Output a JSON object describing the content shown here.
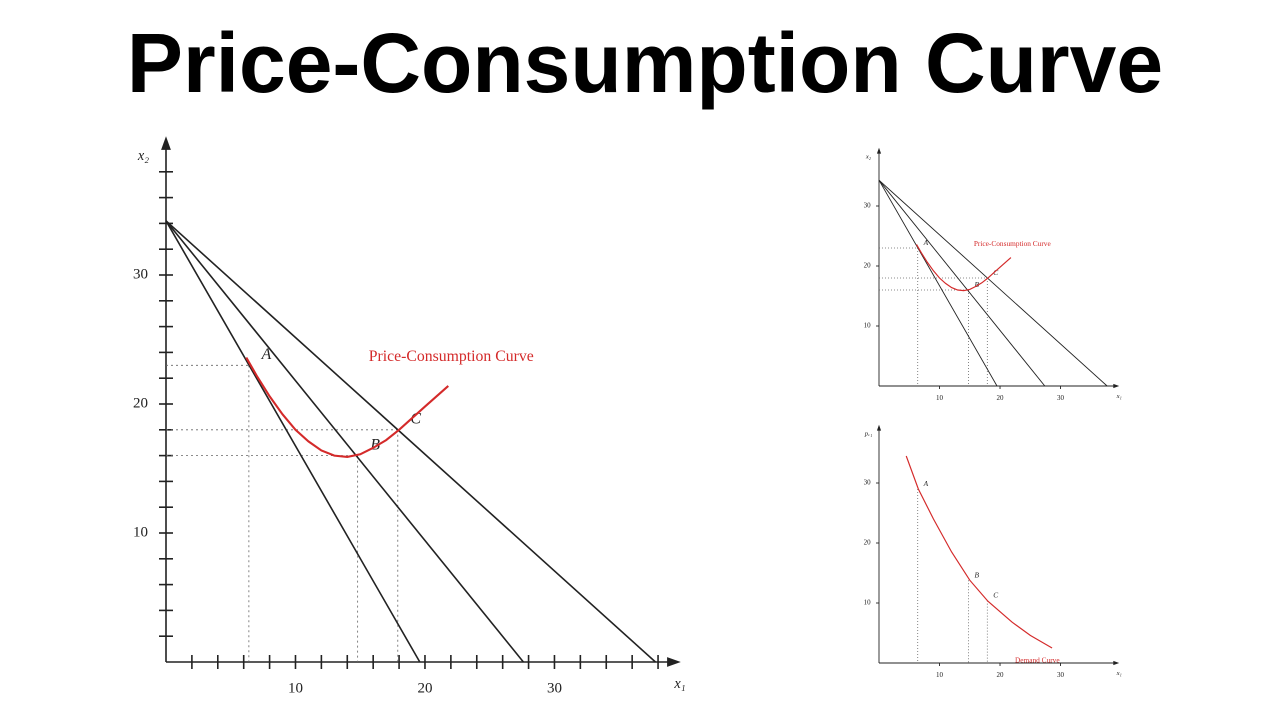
{
  "title": "Price-Consumption Curve",
  "chart_data": [
    {
      "type": "line",
      "xlabel": "x₁",
      "ylabel": "x₂",
      "xlim": [
        0,
        39
      ],
      "ylim": [
        0,
        40
      ],
      "xticks": [
        10,
        20,
        30
      ],
      "yticks": [
        10,
        20,
        30
      ],
      "xminorticks": [
        2,
        4,
        6,
        8,
        12,
        14,
        16,
        18,
        22,
        24,
        26,
        28,
        32,
        34,
        36,
        38
      ],
      "yminorticks": [
        2,
        4,
        6,
        8,
        12,
        14,
        16,
        18,
        22,
        24,
        26,
        28,
        32,
        34,
        36,
        38
      ],
      "series": [
        {
          "color": "#222222",
          "x": [
            0,
            19.6
          ],
          "values": [
            34.2,
            0
          ]
        },
        {
          "color": "#222222",
          "x": [
            0,
            27.6
          ],
          "values": [
            34.2,
            0
          ]
        },
        {
          "color": "#222222",
          "x": [
            0,
            37.8
          ],
          "values": [
            34.2,
            0
          ]
        },
        {
          "name": "Price-Consumption Curve",
          "color": "#d42a2a",
          "x": [
            6.2,
            7,
            8,
            9,
            10,
            11,
            12,
            13,
            14,
            15,
            16,
            17,
            18,
            19,
            20,
            21.8
          ],
          "values": [
            23.6,
            22.2,
            20.6,
            19.2,
            18,
            17.1,
            16.4,
            16,
            15.9,
            16.1,
            16.6,
            17.2,
            18,
            18.9,
            19.8,
            21.4
          ]
        }
      ],
      "points": [
        {
          "label": "A",
          "x": 6.4,
          "y": 23
        },
        {
          "label": "B",
          "x": 14.8,
          "y": 16
        },
        {
          "label": "C",
          "x": 17.9,
          "y": 18
        }
      ]
    },
    {
      "type": "line",
      "xlabel": "x₁",
      "ylabel": "x₂",
      "xlim": [
        0,
        39
      ],
      "ylim": [
        0,
        39
      ],
      "xticks": [
        10,
        20,
        30
      ],
      "yticks": [
        10,
        20,
        30
      ],
      "series": [
        {
          "color": "#222222",
          "x": [
            0,
            19.5
          ],
          "values": [
            34.3,
            0
          ]
        },
        {
          "color": "#222222",
          "x": [
            0,
            27.4
          ],
          "values": [
            34.3,
            0
          ]
        },
        {
          "color": "#222222",
          "x": [
            0,
            37.7
          ],
          "values": [
            34.3,
            0
          ]
        },
        {
          "name": "Price-Consumption Curve",
          "color": "#d42a2a",
          "x": [
            6.2,
            7,
            8,
            9,
            10,
            11,
            12,
            13,
            14,
            15,
            16,
            17,
            18,
            19,
            20,
            21.8
          ],
          "values": [
            23.6,
            22.2,
            20.6,
            19.2,
            18,
            17.1,
            16.4,
            16,
            15.9,
            16.1,
            16.6,
            17.2,
            18,
            18.9,
            19.8,
            21.4
          ]
        }
      ],
      "points": [
        {
          "label": "A",
          "x": 6.4,
          "y": 23
        },
        {
          "label": "B",
          "x": 14.8,
          "y": 16
        },
        {
          "label": "C",
          "x": 17.9,
          "y": 18
        }
      ]
    },
    {
      "type": "line",
      "xlabel": "x₁",
      "ylabel": "pₓ₁",
      "xlim": [
        0,
        39
      ],
      "ylim": [
        0,
        39
      ],
      "xticks": [
        10,
        20,
        30
      ],
      "yticks": [
        10,
        20,
        30
      ],
      "series": [
        {
          "name": "Demand Curve",
          "color": "#d42a2a",
          "x": [
            4.5,
            6.5,
            9,
            12,
            15,
            18,
            22,
            25,
            28.6
          ],
          "values": [
            34.5,
            29,
            24,
            18.5,
            13.8,
            10.3,
            6.8,
            4.6,
            2.5
          ]
        }
      ],
      "points": [
        {
          "label": "A",
          "x": 6.4,
          "y": 29
        },
        {
          "label": "B",
          "x": 14.8,
          "y": 13.8
        },
        {
          "label": "C",
          "x": 17.9,
          "y": 10.4
        }
      ]
    }
  ]
}
